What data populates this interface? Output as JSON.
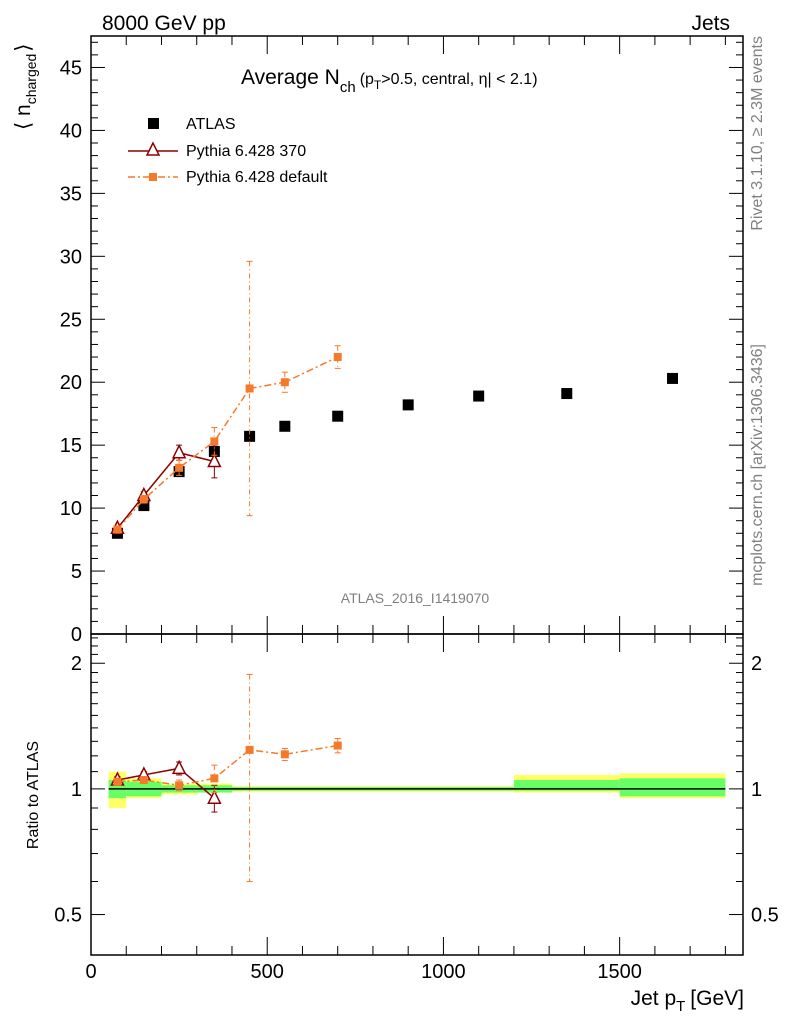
{
  "header": {
    "left": "8000 GeV pp",
    "right": "Jets",
    "side_top": "Rivet 3.1.10, ≥ 2.3M events",
    "side_bottom": "mcplots.cern.ch [arXiv:1306.3436]",
    "watermark": "ATLAS_2016_I1419070"
  },
  "title": {
    "main": "Average N",
    "sub": "ch",
    "detail_a": "(p",
    "detail_sub": "T",
    "detail_b": ">0.5, central, η| < 2.1)"
  },
  "labels": {
    "ylabel_main": "⟨ n",
    "ylabel_sub": "charged",
    "ylabel_close": "⟩",
    "ylabel_ratio": "Ratio to ATLAS",
    "xlabel": "Jet p",
    "xlabel_sub": "T",
    "xlabel_unit": "[GeV]"
  },
  "legend": [
    {
      "label": "ATLAS"
    },
    {
      "label": "Pythia 6.428 370"
    },
    {
      "label": "Pythia 6.428 default"
    }
  ],
  "chart_data": {
    "type": "scatter",
    "colors": {
      "atlas": "#000000",
      "p370": "#8b0000",
      "default": "#f5792a",
      "band_inner": "#66ff66",
      "band_outer": "#ffff66"
    },
    "main": {
      "xlim": [
        0,
        1850
      ],
      "ylim": [
        0,
        47.5
      ],
      "yticks": [
        0,
        5,
        10,
        15,
        20,
        25,
        30,
        35,
        40,
        45
      ],
      "xticks": [
        0,
        500,
        1000,
        1500
      ],
      "series": [
        {
          "key": "atlas",
          "name": "ATLAS",
          "x": [
            75,
            150,
            250,
            350,
            450,
            550,
            700,
            900,
            1100,
            1350,
            1650
          ],
          "y": [
            8.0,
            10.2,
            12.9,
            14.5,
            15.7,
            16.5,
            17.3,
            18.2,
            18.9,
            19.1,
            20.3
          ]
        },
        {
          "key": "p370",
          "name": "Pythia 6.428 370",
          "x": [
            75,
            150,
            250,
            350
          ],
          "y": [
            8.4,
            11.0,
            14.4,
            13.7
          ],
          "err": [
            0.2,
            0.3,
            0.6,
            1.3
          ]
        },
        {
          "key": "default",
          "name": "Pythia 6.428 default",
          "x": [
            75,
            150,
            250,
            350,
            450,
            550,
            700
          ],
          "y": [
            8.3,
            10.7,
            13.2,
            15.3,
            19.5,
            20.0,
            22.0
          ],
          "err": [
            0.2,
            0.3,
            0.6,
            1.1,
            10.1,
            0.8,
            0.9
          ]
        }
      ]
    },
    "ratio": {
      "xlim": [
        0,
        1850
      ],
      "ylim": [
        0.4,
        2.35
      ],
      "log": true,
      "yticks": [
        0.5,
        1,
        2
      ],
      "bands": [
        {
          "x0": 50,
          "x1": 100,
          "inner": [
            0.95,
            1.05
          ],
          "outer": [
            0.9,
            1.1
          ]
        },
        {
          "x0": 100,
          "x1": 200,
          "inner": [
            0.96,
            1.04
          ],
          "outer": [
            0.95,
            1.06
          ]
        },
        {
          "x0": 200,
          "x1": 300,
          "inner": [
            0.98,
            1.02
          ],
          "outer": [
            0.97,
            1.03
          ]
        },
        {
          "x0": 300,
          "x1": 400,
          "inner": [
            0.98,
            1.02
          ],
          "outer": [
            0.98,
            1.03
          ]
        },
        {
          "x0": 400,
          "x1": 1200,
          "inner": [
            0.99,
            1.01
          ],
          "outer": [
            0.985,
            1.015
          ]
        },
        {
          "x0": 1200,
          "x1": 1500,
          "inner": [
            0.99,
            1.05
          ],
          "outer": [
            0.98,
            1.08
          ]
        },
        {
          "x0": 1500,
          "x1": 1800,
          "inner": [
            0.96,
            1.06
          ],
          "outer": [
            0.95,
            1.09
          ]
        }
      ],
      "series": [
        {
          "key": "p370",
          "x": [
            75,
            150,
            250,
            350
          ],
          "y": [
            1.05,
            1.08,
            1.12,
            0.95
          ],
          "err": [
            0.02,
            0.02,
            0.04,
            0.07
          ]
        },
        {
          "key": "default",
          "x": [
            75,
            150,
            250,
            350,
            450,
            550,
            700
          ],
          "y": [
            1.04,
            1.05,
            1.02,
            1.06,
            1.24,
            1.21,
            1.27
          ],
          "err": [
            0.02,
            0.02,
            0.03,
            0.08,
            0.64,
            0.04,
            0.05
          ]
        }
      ]
    }
  }
}
